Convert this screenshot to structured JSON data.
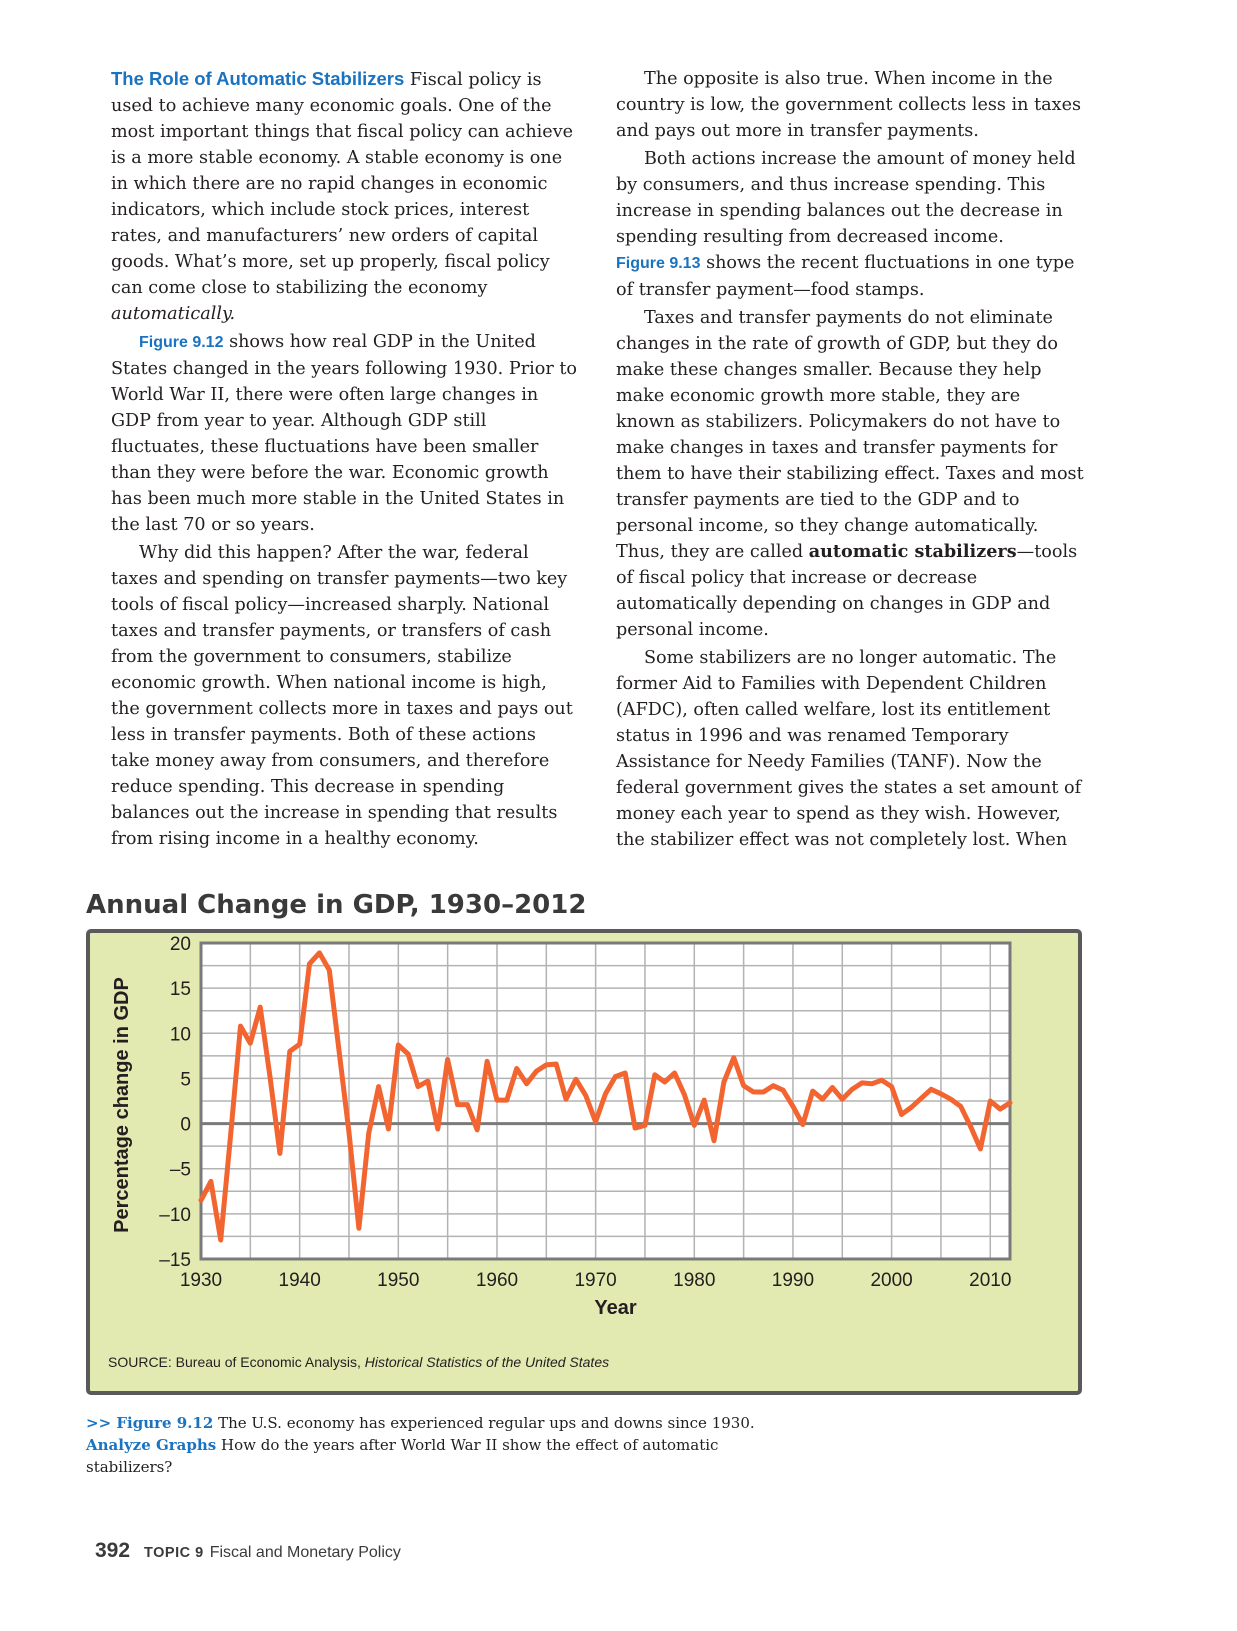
{
  "left_column": {
    "heading": "The Role of Automatic Stabilizers",
    "p1": " Fiscal policy is used to achieve many economic goals. One of the most important things that fiscal policy can achieve is a more stable economy. A stable economy is one in which there are no rapid changes in economic indicators, which include stock prices, interest rates, and manufacturers’ new orders of capital goods. What’s more, set up properly, fiscal policy can come close to stabilizing the economy ",
    "p1_emphasis": "automatically.",
    "p2_ref": "Figure 9.12",
    "p2": " shows how real GDP in the United States changed in the years following 1930. Prior to World War II, there were often large changes in GDP from year to year. Although GDP still fluctuates, these fluctuations have been smaller than they were before the war. Economic growth has been much more stable in the United States in the last 70 or so years.",
    "p3": "Why did this happen? After the war, federal taxes and spending on transfer payments—two key tools of fiscal policy—increased sharply. National taxes and transfer payments, or transfers of cash from the government to consumers, stabilize economic growth. When national income is high, the government collects more in taxes and pays out less in transfer payments. Both of these actions take money away from consumers, and therefore reduce spending. This decrease in spending balances out the increase in spending that results from rising income in a healthy economy."
  },
  "right_column": {
    "p1": "The opposite is also true. When income in the country is low, the government collects less in taxes and pays out more in transfer payments.",
    "p2": "Both actions increase the amount of money held by consumers, and thus increase spending. This increase in spending balances out the decrease in spending resulting from decreased income.",
    "p2_ref": "Figure 9.13",
    "p2_tail": " shows the recent fluctuations in one type of transfer payment—food stamps.",
    "p3": "Taxes and transfer payments do not eliminate changes in the rate of growth of GDP, but they do make these changes smaller. Because they help make economic growth more stable, they are known as stabilizers. Policymakers do not have to make changes in taxes and transfer payments for them to have their stabilizing effect. Taxes and most transfer payments are tied to the GDP and to personal income, so they change automatically. Thus, they are called ",
    "p3_keyword": "automatic stabilizers",
    "p3_tail": "—tools of fiscal policy that increase or decrease automatically depending on changes in GDP and personal income.",
    "p4": "Some stabilizers are no longer automatic. The former Aid to Families with Dependent Children (AFDC), often called welfare, lost its entitlement status in 1996 and was renamed Temporary Assistance for Needy Families (TANF). Now the federal government gives the states a set amount of money each year to spend as they wish. However, the stabilizer effect was not completely lost. When"
  },
  "chart_data": {
    "type": "line",
    "title": "Annual Change in GDP, 1930–2012",
    "xlabel": "Year",
    "ylabel": "Percentage change in GDP",
    "xlim": [
      1930,
      2012
    ],
    "ylim": [
      -15,
      20
    ],
    "xticks": [
      1930,
      1940,
      1950,
      1960,
      1970,
      1980,
      1990,
      2000,
      2010
    ],
    "yticks": [
      20,
      15,
      10,
      5,
      0,
      -5,
      -10,
      -15
    ],
    "ytick_labels": [
      "20",
      "15",
      "10",
      "5",
      "0",
      "–5",
      "–10",
      "–15"
    ],
    "grid": true,
    "line_color": "#f26531",
    "series": [
      {
        "x": [
          1930,
          1931,
          1932,
          1933,
          1934,
          1935,
          1936,
          1937,
          1938,
          1939,
          1940,
          1941,
          1942,
          1943,
          1944,
          1945,
          1946,
          1947,
          1948,
          1949,
          1950,
          1951,
          1952,
          1953,
          1954,
          1955,
          1956,
          1957,
          1958,
          1959,
          1960,
          1961,
          1962,
          1963,
          1964,
          1965,
          1966,
          1967,
          1968,
          1969,
          1970,
          1971,
          1972,
          1973,
          1974,
          1975,
          1976,
          1977,
          1978,
          1979,
          1980,
          1981,
          1982,
          1983,
          1984,
          1985,
          1986,
          1987,
          1988,
          1989,
          1990,
          1991,
          1992,
          1993,
          1994,
          1995,
          1996,
          1997,
          1998,
          1999,
          2000,
          2001,
          2002,
          2003,
          2004,
          2005,
          2006,
          2007,
          2008,
          2009,
          2010,
          2011,
          2012
        ],
        "y": [
          -8.5,
          -6.4,
          -12.9,
          -1.3,
          10.8,
          8.9,
          12.9,
          5.1,
          -3.3,
          8.0,
          8.8,
          17.7,
          18.9,
          17.0,
          8.0,
          -1.0,
          -11.6,
          -1.1,
          4.1,
          -0.6,
          8.7,
          7.7,
          4.1,
          4.7,
          -0.6,
          7.1,
          2.1,
          2.1,
          -0.7,
          6.9,
          2.6,
          2.6,
          6.1,
          4.4,
          5.8,
          6.5,
          6.6,
          2.7,
          4.9,
          3.1,
          0.2,
          3.3,
          5.2,
          5.6,
          -0.5,
          -0.2,
          5.4,
          4.6,
          5.6,
          3.2,
          -0.2,
          2.6,
          -1.9,
          4.6,
          7.3,
          4.2,
          3.5,
          3.5,
          4.2,
          3.7,
          1.9,
          -0.1,
          3.6,
          2.7,
          4.0,
          2.7,
          3.8,
          4.5,
          4.4,
          4.8,
          4.1,
          1.0,
          1.8,
          2.8,
          3.8,
          3.3,
          2.7,
          1.9,
          -0.3,
          -2.8,
          2.5,
          1.6,
          2.3
        ]
      }
    ],
    "source_prefix": "SOURCE: Bureau of Economic Analysis, ",
    "source_title": "Historical Statistics of the United States"
  },
  "caption": {
    "marker": ">> ",
    "ref": "Figure 9.12",
    "text": " The U.S. economy has experienced regular ups and downs since 1930.",
    "prompt_label": "Analyze Graphs",
    "prompt_text": " How do the years after World War II show the effect of automatic stabilizers?"
  },
  "footer": {
    "page_number": "392",
    "topic_label": "TOPIC 9",
    "topic_title": "Fiscal and Monetary Policy"
  }
}
